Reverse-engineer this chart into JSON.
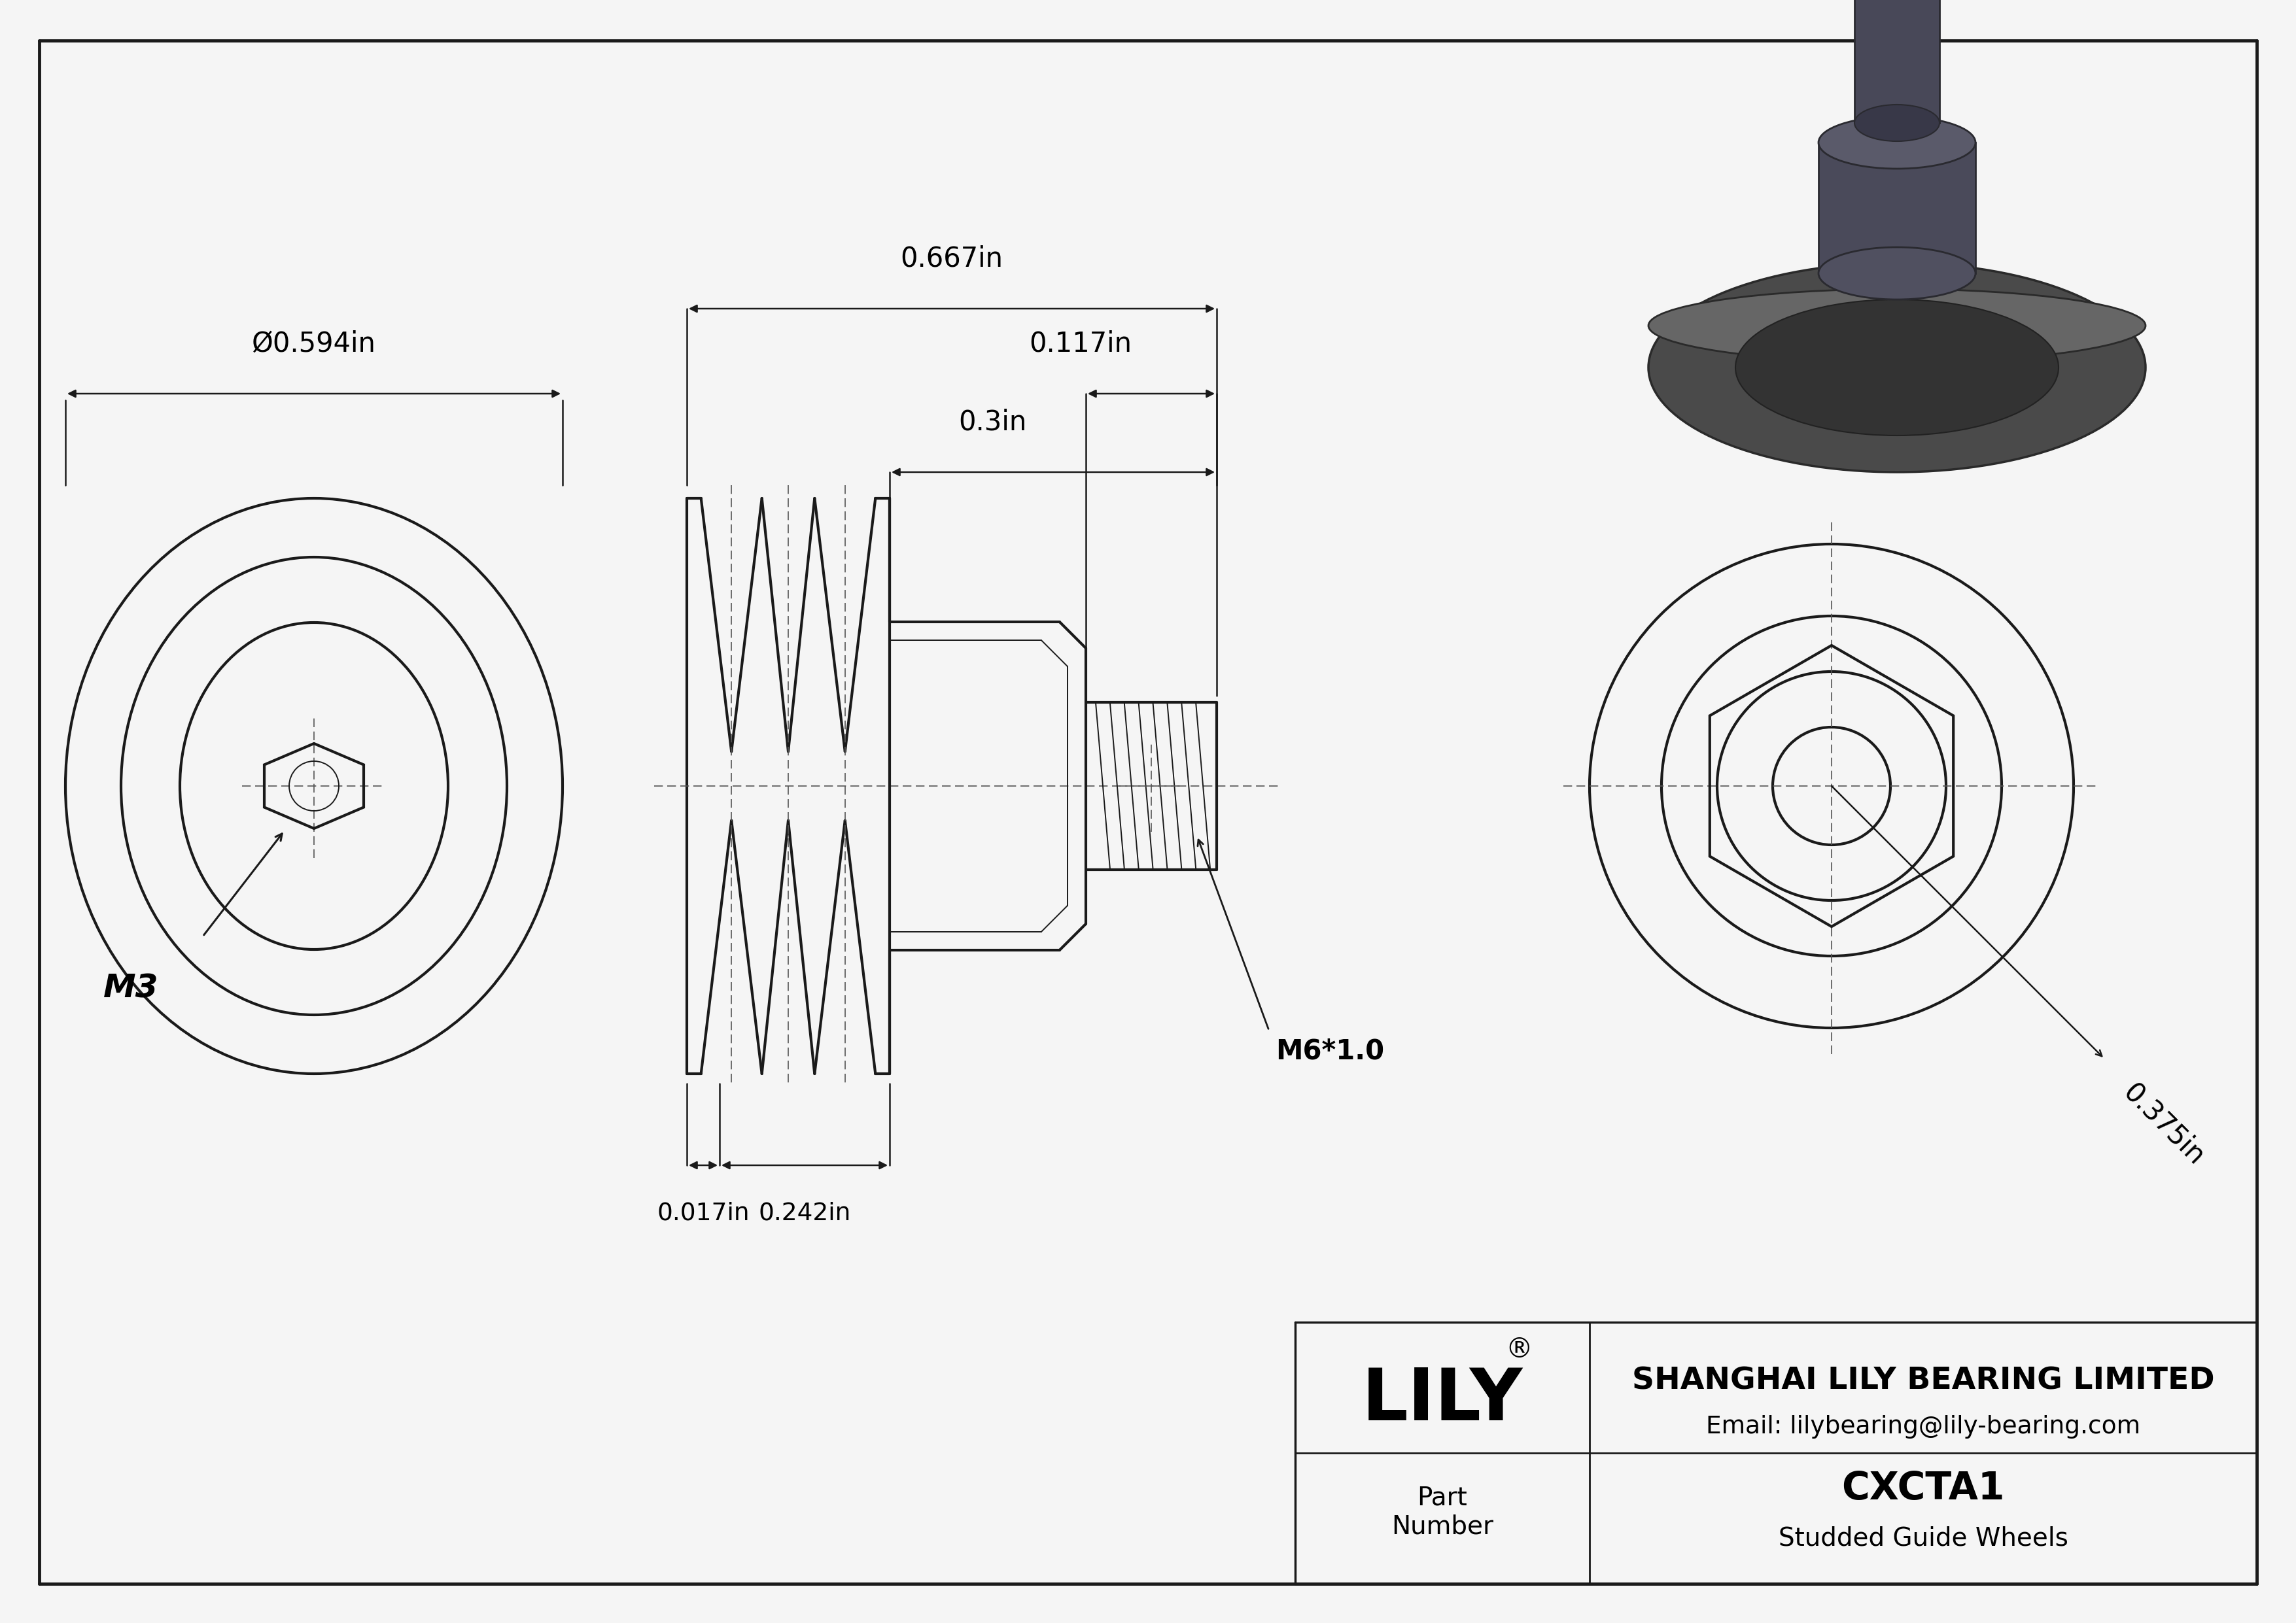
{
  "bg_color": "#ffffff",
  "paper_color": "#f5f5f5",
  "line_color": "#1a1a1a",
  "title_box": {
    "company": "SHANGHAI LILY BEARING LIMITED",
    "email": "Email: lilybearing@lily-bearing.com",
    "part_label": "Part\nNumber",
    "part_number": "CXCTA1",
    "part_desc": "Studded Guide Wheels",
    "brand": "LILY"
  },
  "dimensions": {
    "dia_outer": "Ø0.594in",
    "width_total": "0.667in",
    "width_stud": "0.117in",
    "width_nut": "0.3in",
    "width_groove": "0.242in",
    "width_thread": "0.017in",
    "thread_label": "M6*1.0",
    "hole_label": "M3",
    "dim_right": "0.375in"
  }
}
